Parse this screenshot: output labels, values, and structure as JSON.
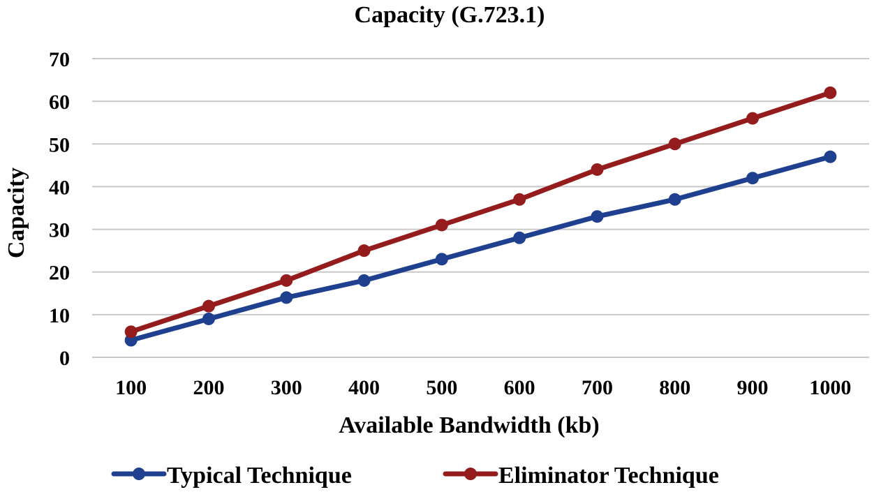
{
  "chart_data": {
    "type": "line",
    "title": "Capacity (G.723.1)",
    "xlabel": "Available Bandwidth (kb)",
    "ylabel": "Capacity",
    "categories": [
      "100",
      "200",
      "300",
      "400",
      "500",
      "600",
      "700",
      "800",
      "900",
      "1000"
    ],
    "ylim": [
      0,
      70
    ],
    "yticks": [
      "0",
      "10",
      "20",
      "30",
      "40",
      "50",
      "60",
      "70"
    ],
    "grid": true,
    "legend_position": "bottom",
    "series": [
      {
        "name": "Typical Technique",
        "color": "#1f3f8f",
        "values": [
          4,
          9,
          14,
          18,
          23,
          28,
          33,
          37,
          42,
          47
        ]
      },
      {
        "name": "Eliminator Technique",
        "color": "#951c1c",
        "values": [
          6,
          12,
          18,
          25,
          31,
          37,
          44,
          50,
          56,
          62
        ]
      }
    ]
  }
}
